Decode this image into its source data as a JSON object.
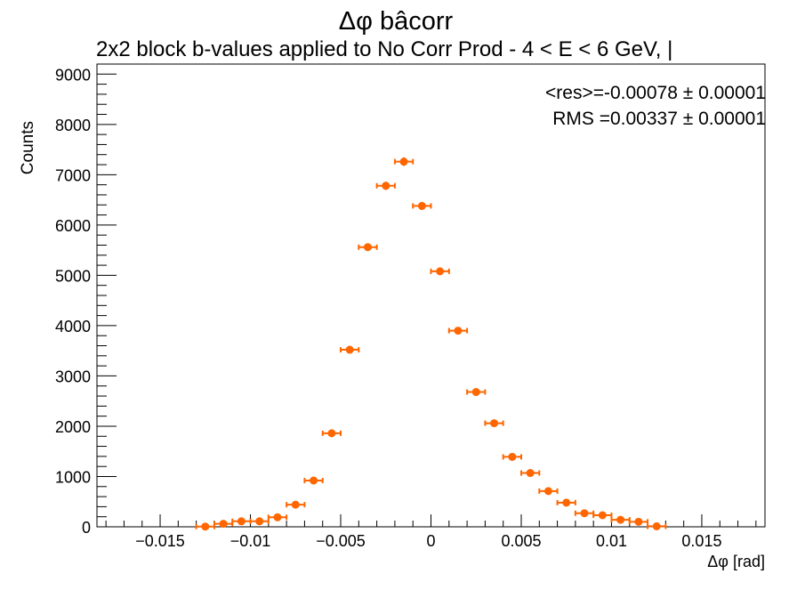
{
  "chart_data": {
    "type": "scatter",
    "title": "Δφ bâcorr",
    "subtitle": "2x2 block b-values applied to No Corr Prod   -   4 < E < 6 GeV, |",
    "xlabel": "Δφ  [rad]",
    "ylabel": "Counts",
    "xlim": [
      -0.0185,
      0.0185
    ],
    "ylim": [
      0,
      9200
    ],
    "x_ticks": [
      -0.015,
      -0.01,
      -0.005,
      0,
      0.005,
      0.01,
      0.015
    ],
    "x_tick_labels": [
      "−0.015",
      "−0.01",
      "−0.005",
      "0",
      "0.005",
      "0.01",
      "0.015"
    ],
    "y_ticks": [
      0,
      1000,
      2000,
      3000,
      4000,
      5000,
      6000,
      7000,
      8000,
      9000
    ],
    "y_tick_labels": [
      "0",
      "1000",
      "2000",
      "3000",
      "4000",
      "5000",
      "6000",
      "7000",
      "8000",
      "9000"
    ],
    "bin_width": 0.001,
    "marker_color": "#ff6600",
    "grid": false,
    "stats": {
      "mean_label": "<res>=-0.00078 ± 0.00001",
      "rms_label": "RMS =0.00337 ± 0.00001"
    },
    "series": [
      {
        "x": [
          -0.0125,
          -0.0115,
          -0.0105,
          -0.0095,
          -0.0085,
          -0.0075,
          -0.0065,
          -0.0055,
          -0.0045,
          -0.0035,
          -0.0025,
          -0.0015,
          -0.0005,
          0.0005,
          0.0015,
          0.0025,
          0.0035,
          0.0045,
          0.0055,
          0.0065,
          0.0075,
          0.0085,
          0.0095,
          0.0105,
          0.0115,
          0.0125
        ],
        "y": [
          5,
          60,
          110,
          110,
          190,
          440,
          920,
          1860,
          3520,
          5560,
          6780,
          7260,
          6380,
          5080,
          3900,
          2680,
          2060,
          1390,
          1070,
          710,
          480,
          270,
          230,
          140,
          100,
          10
        ]
      }
    ]
  }
}
